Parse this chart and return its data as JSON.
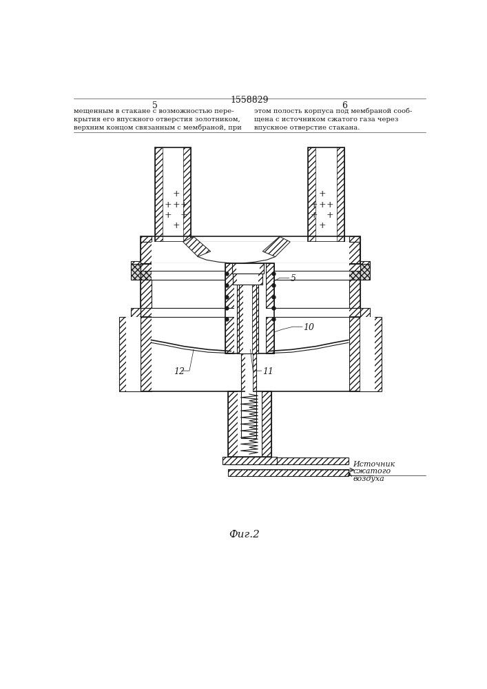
{
  "title": "1558829",
  "page_left": "5",
  "page_right": "6",
  "fig_label": "Фиг.2",
  "text_left": "мещенным в стакане с возможностью пере-\nкрытия его впускного отверстия золотником,\nверхним концом связанным с мембраной, при",
  "text_right": "этом полость корпуса под мембраной сооб-\nщена с источником сжатого газа через\nвпускное отверстие стакана.",
  "label_5": "5",
  "label_10": "10",
  "label_11": "11",
  "label_12": "12",
  "src_line1": "Источник",
  "src_line2": "сжатого",
  "src_line3": "воздуха",
  "bg_color": "#ffffff",
  "line_color": "#1a1a1a"
}
